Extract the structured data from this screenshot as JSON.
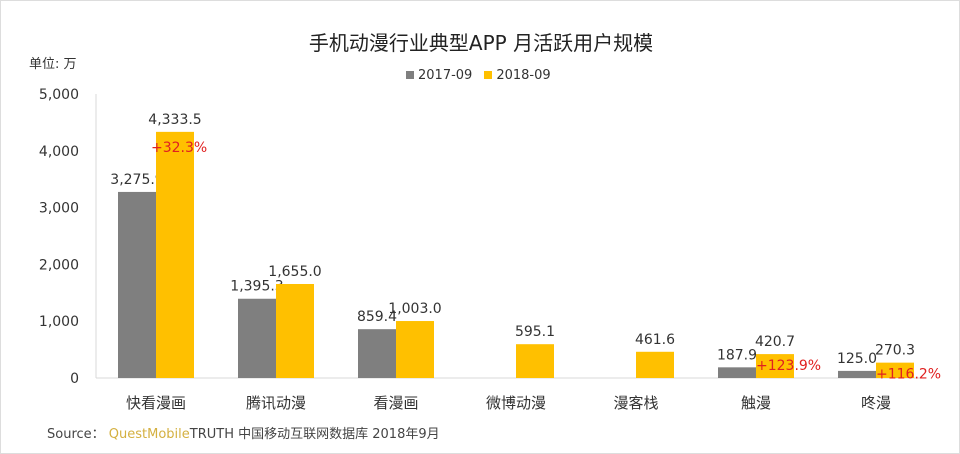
{
  "chart_data": {
    "type": "bar",
    "title": "手机动漫行业典型APP 月活跃用户规模",
    "ylabel": "单位: 万",
    "ylim": [
      0,
      5000
    ],
    "yticks": [
      "0",
      "1,000",
      "2,000",
      "3,000",
      "4,000",
      "5,000"
    ],
    "grid": false,
    "legend": "top",
    "categories": [
      "快看漫画",
      "腾讯动漫",
      "看漫画",
      "微博动漫",
      "漫客栈",
      "触漫",
      "咚漫"
    ],
    "series": [
      {
        "name": "2017-09",
        "color": "#7f7f7f",
        "values": [
          3275.9,
          1395.3,
          859.4,
          null,
          null,
          187.9,
          125.0
        ],
        "labels": [
          "3,275.9",
          "1,395.3",
          "859.4",
          "",
          "",
          "187.9",
          "125.0"
        ]
      },
      {
        "name": "2018-09",
        "color": "#ffc000",
        "values": [
          4333.5,
          1655.0,
          1003.0,
          595.1,
          461.6,
          420.7,
          270.3
        ],
        "labels": [
          "4,333.5",
          "1,655.0",
          "1,003.0",
          "595.1",
          "461.6",
          "420.7",
          "270.3"
        ]
      }
    ],
    "annotations": [
      {
        "category": "快看漫画",
        "text": "+32.3%",
        "color": "#e02020"
      },
      {
        "category": "触漫",
        "text": "+123.9%",
        "color": "#e02020"
      },
      {
        "category": "咚漫",
        "text": "+116.2%",
        "color": "#e02020"
      }
    ]
  },
  "source": {
    "prefix": "Source：",
    "brand": "QuestMobile",
    "rest": "TRUTH 中国移动互联网数据库 2018年9月"
  }
}
